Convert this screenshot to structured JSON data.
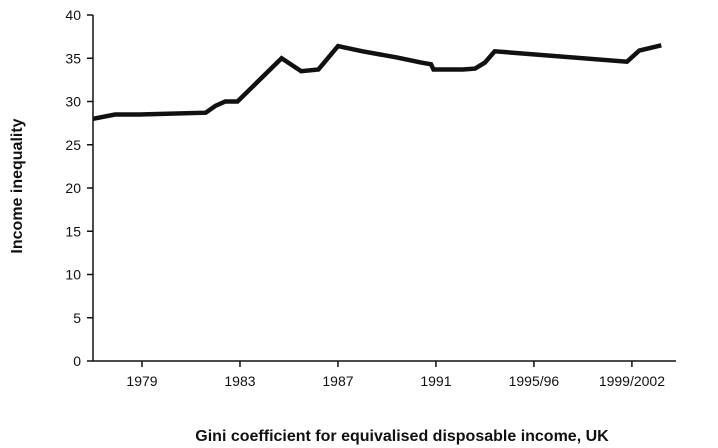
{
  "chart_data": {
    "type": "line",
    "title": "",
    "xlabel": "Gini coefficient for equivalised disposable income, UK",
    "ylabel": "Income inequality",
    "ylim": [
      0,
      40
    ],
    "y_ticks": [
      0,
      5,
      10,
      15,
      20,
      25,
      30,
      35,
      40
    ],
    "x_tick_labels": [
      "1979",
      "1983",
      "1987",
      "1991",
      "1995/96",
      "1999/2002"
    ],
    "x_tick_values": [
      1979,
      1983,
      1987,
      1991,
      1995,
      1999
    ],
    "xlim": [
      1977,
      2000.8
    ],
    "grid": false,
    "legend": "none",
    "line_color": "#111111",
    "series": [
      {
        "x": [
          1977.0,
          1977.9,
          1978.9,
          1981.6,
          1982.0,
          1982.4,
          1982.9,
          1984.7,
          1985.5,
          1986.2,
          1987.0,
          1988.0,
          1989.4,
          1990.4,
          1990.8,
          1990.9,
          1991.5,
          1992.1,
          1992.6,
          1993.0,
          1993.4,
          1998.8,
          1999.3,
          2000.2
        ],
        "values": [
          28.0,
          28.5,
          28.5,
          28.7,
          29.5,
          30.0,
          30.0,
          35.0,
          33.5,
          33.7,
          36.4,
          35.8,
          35.1,
          34.5,
          34.3,
          33.7,
          33.7,
          33.7,
          33.8,
          34.5,
          35.8,
          34.6,
          35.9,
          36.5
        ]
      }
    ]
  }
}
